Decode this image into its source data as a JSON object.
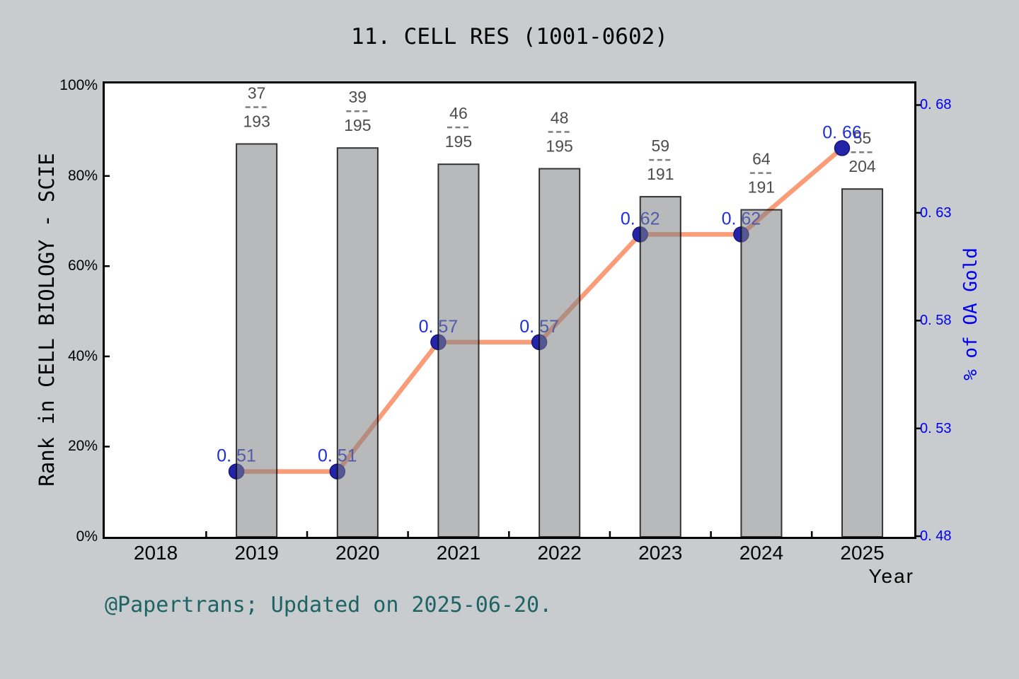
{
  "page": {
    "background": "#c8ccce"
  },
  "header": {
    "title": "11. CELL RES (1001-0602)"
  },
  "footer": {
    "credit": "@Papertrans; Updated on 2025-06-20."
  },
  "chart_data": {
    "type": "bar+line dual-axis",
    "title": "11. CELL RES (1001-0602)",
    "xlabel": "Year",
    "ylabel_left": "Rank in CELL BIOLOGY - SCIE",
    "ylabel_right": "% of OA Gold",
    "x_axis": {
      "tick_labels": [
        "2018",
        "2019",
        "2020",
        "2021",
        "2022",
        "2023",
        "2024",
        "2025"
      ],
      "tick_years": [
        2018,
        2019,
        2020,
        2021,
        2022,
        2023,
        2024,
        2025
      ],
      "minor_tick_years": [
        2018.5,
        2019.5,
        2020.5,
        2021.5,
        2022.5,
        2023.5,
        2024.5
      ],
      "xlim": [
        2017.495,
        2025.515
      ]
    },
    "left_axis": {
      "tick_labels": [
        "0%",
        "20%",
        "40%",
        "60%",
        "80%",
        "100%"
      ],
      "tick_values": [
        0,
        20,
        40,
        60,
        80,
        100
      ],
      "ylim": [
        0,
        100.5
      ],
      "color": "#000000"
    },
    "right_axis": {
      "tick_labels": [
        "0. 48",
        "0. 53",
        "0. 58",
        "0. 63",
        "0. 68"
      ],
      "tick_values": [
        0.48,
        0.53,
        0.58,
        0.63,
        0.68
      ],
      "ylim": [
        0.4797,
        0.69
      ],
      "color": "#0000ee"
    },
    "bars": {
      "name": "Rank in CELL BIOLOGY - SCIE",
      "years": [
        2019,
        2020,
        2021,
        2022,
        2023,
        2024,
        2025
      ],
      "height_pct": [
        87.1,
        86.2,
        82.6,
        81.6,
        75.4,
        72.5,
        77.1
      ],
      "fractions": [
        {
          "num": "37",
          "den": "193"
        },
        {
          "num": "39",
          "den": "195"
        },
        {
          "num": "46",
          "den": "195"
        },
        {
          "num": "48",
          "den": "195"
        },
        {
          "num": "59",
          "den": "191"
        },
        {
          "num": "64",
          "den": "191"
        },
        {
          "num": "55",
          "den": "204"
        }
      ],
      "bar_width_years": 0.4,
      "fill": "rgba(126,128,131,0.55)"
    },
    "line": {
      "name": "% of OA Gold",
      "years": [
        2019,
        2020,
        2021,
        2022,
        2023,
        2024,
        2025
      ],
      "x_offset_years": -0.2,
      "values": [
        0.51,
        0.51,
        0.57,
        0.57,
        0.62,
        0.62,
        0.66
      ],
      "point_labels": [
        "0. 51",
        "0. 51",
        "0. 57",
        "0. 57",
        "0. 62",
        "0. 62",
        "0. 66"
      ],
      "line_color": "#fa9c78",
      "marker_color": "#2424a8",
      "label_color": "#1d2fd6"
    }
  }
}
